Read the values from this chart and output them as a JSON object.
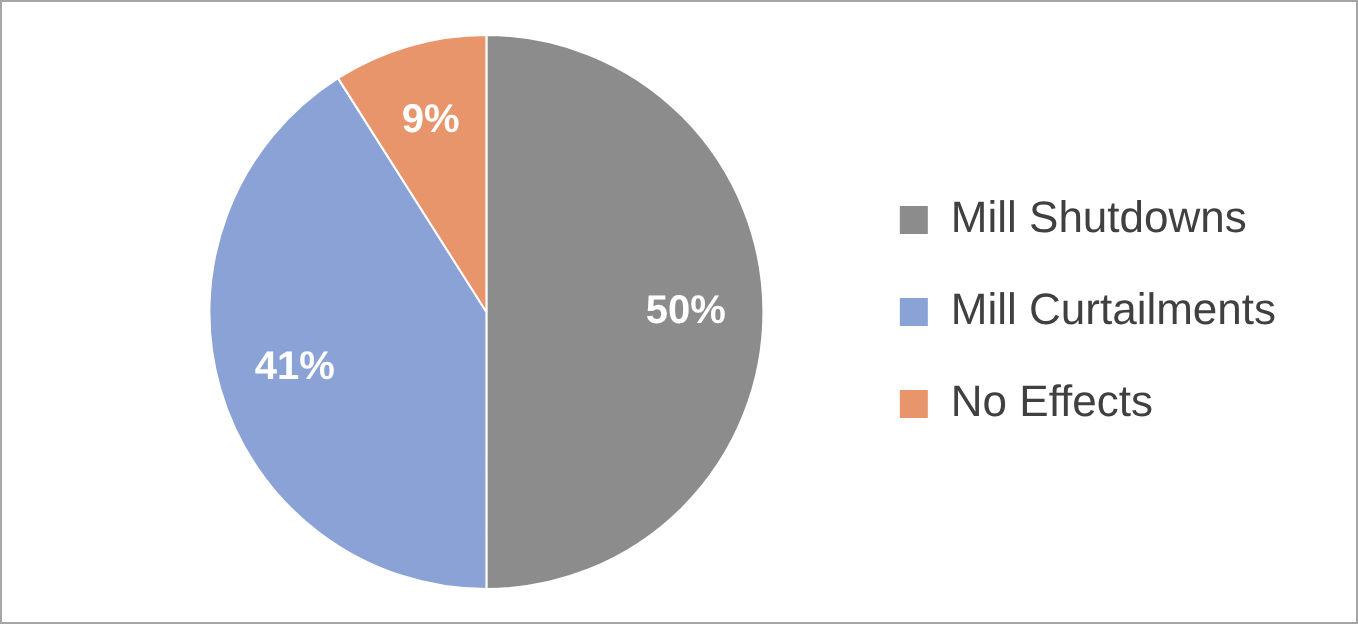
{
  "chart_data": {
    "type": "pie",
    "categories": [
      "Mill Shutdowns",
      "Mill Curtailments",
      "No Effects"
    ],
    "values": [
      50,
      41,
      9
    ],
    "colors": [
      "#8c8c8c",
      "#8aa2d5",
      "#e8956c"
    ],
    "value_labels": [
      "50%",
      "41%",
      "9%"
    ],
    "legend": "right"
  }
}
